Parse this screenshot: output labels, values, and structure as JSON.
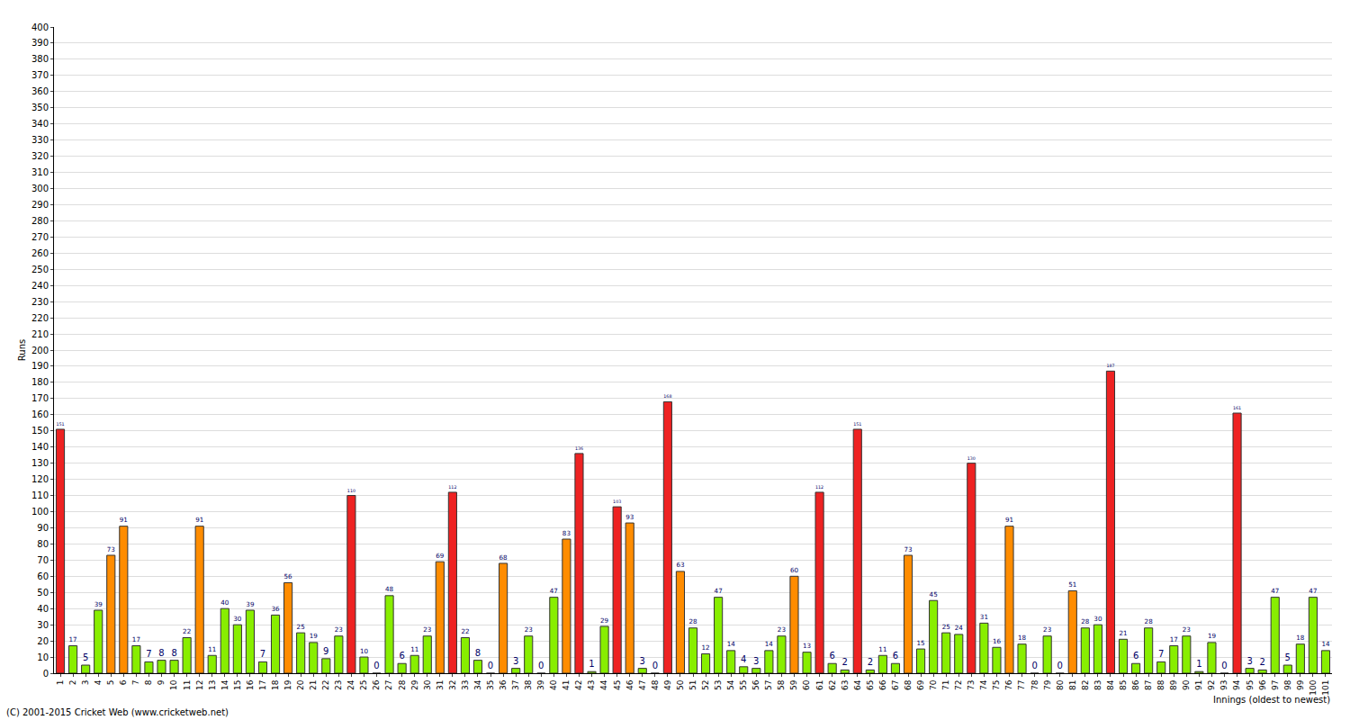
{
  "chart_data": {
    "type": "bar",
    "x_label": "Innings (oldest to newest)",
    "y_label": "Runs",
    "annotations": [
      "(C) 2001-2015 Cricket Web (www.cricketweb.net)"
    ],
    "categories": [
      "1",
      "2",
      "3",
      "4",
      "5",
      "6",
      "7",
      "8",
      "9",
      "10",
      "11",
      "12",
      "13",
      "14",
      "15",
      "16",
      "17",
      "18",
      "19",
      "20",
      "21",
      "22",
      "23",
      "24",
      "25",
      "26",
      "27",
      "28",
      "29",
      "30",
      "31",
      "32",
      "33",
      "34",
      "35",
      "36",
      "37",
      "38",
      "39",
      "40",
      "41",
      "42",
      "43",
      "44",
      "45",
      "46",
      "47",
      "48",
      "49",
      "50",
      "51",
      "52",
      "53",
      "54",
      "55",
      "56",
      "57",
      "58",
      "59",
      "60",
      "61",
      "62",
      "63",
      "64",
      "65",
      "66",
      "67",
      "68",
      "69",
      "70",
      "71",
      "72",
      "73",
      "74",
      "75",
      "76",
      "77",
      "78",
      "79",
      "80",
      "81",
      "82",
      "83",
      "84",
      "85",
      "86",
      "87",
      "88",
      "89",
      "90",
      "91",
      "92",
      "93",
      "94",
      "95",
      "96",
      "97",
      "98",
      "99",
      "100",
      "101"
    ],
    "values": [
      151,
      17,
      5,
      39,
      73,
      91,
      17,
      7,
      8,
      8,
      22,
      91,
      11,
      40,
      30,
      39,
      7,
      36,
      56,
      25,
      19,
      9,
      23,
      110,
      10,
      0,
      48,
      6,
      11,
      23,
      69,
      112,
      22,
      8,
      0,
      68,
      3,
      23,
      0,
      47,
      83,
      136,
      1,
      29,
      103,
      93,
      3,
      0,
      168,
      63,
      28,
      12,
      47,
      14,
      4,
      3,
      14,
      23,
      60,
      13,
      112,
      6,
      2,
      151,
      2,
      11,
      6,
      73,
      15,
      45,
      25,
      24,
      130,
      31,
      16,
      91,
      18,
      0,
      23,
      0,
      51,
      28,
      30,
      187,
      21,
      6,
      28,
      7,
      17,
      23,
      1,
      19,
      0,
      161,
      3,
      2,
      47,
      5,
      18,
      47,
      14
    ],
    "colors": [
      "#ee2222",
      "#88ee00",
      "#88ee00",
      "#88ee00",
      "#ff8c00",
      "#ff8c00",
      "#88ee00",
      "#88ee00",
      "#88ee00",
      "#88ee00",
      "#88ee00",
      "#ff8c00",
      "#88ee00",
      "#88ee00",
      "#88ee00",
      "#88ee00",
      "#88ee00",
      "#88ee00",
      "#ff8c00",
      "#88ee00",
      "#88ee00",
      "#88ee00",
      "#88ee00",
      "#ee2222",
      "#88ee00",
      "#88ee00",
      "#88ee00",
      "#88ee00",
      "#88ee00",
      "#88ee00",
      "#ff8c00",
      "#ee2222",
      "#88ee00",
      "#88ee00",
      "#88ee00",
      "#ff8c00",
      "#88ee00",
      "#88ee00",
      "#88ee00",
      "#88ee00",
      "#ff8c00",
      "#ee2222",
      "#88ee00",
      "#88ee00",
      "#ee2222",
      "#ff8c00",
      "#88ee00",
      "#88ee00",
      "#ee2222",
      "#ff8c00",
      "#88ee00",
      "#88ee00",
      "#88ee00",
      "#88ee00",
      "#88ee00",
      "#88ee00",
      "#88ee00",
      "#88ee00",
      "#ff8c00",
      "#88ee00",
      "#ee2222",
      "#88ee00",
      "#88ee00",
      "#ee2222",
      "#88ee00",
      "#88ee00",
      "#88ee00",
      "#ff8c00",
      "#88ee00",
      "#88ee00",
      "#88ee00",
      "#88ee00",
      "#ee2222",
      "#88ee00",
      "#88ee00",
      "#ff8c00",
      "#88ee00",
      "#88ee00",
      "#88ee00",
      "#88ee00",
      "#ff8c00",
      "#88ee00",
      "#88ee00",
      "#ee2222",
      "#88ee00",
      "#88ee00",
      "#88ee00",
      "#88ee00",
      "#88ee00",
      "#88ee00",
      "#88ee00",
      "#88ee00",
      "#88ee00",
      "#ee2222",
      "#88ee00",
      "#88ee00",
      "#88ee00",
      "#88ee00",
      "#88ee00",
      "#88ee00",
      "#88ee00"
    ],
    "ylim": [
      0,
      400
    ],
    "yticks": [
      0,
      10,
      20,
      30,
      40,
      50,
      60,
      70,
      80,
      90,
      100,
      110,
      120,
      130,
      140,
      150,
      160,
      170,
      180,
      190,
      200,
      210,
      220,
      230,
      240,
      250,
      260,
      270,
      280,
      290,
      300,
      310,
      320,
      330,
      340,
      350,
      360,
      370,
      380,
      390,
      400
    ],
    "grid": true,
    "data_labels": true
  }
}
